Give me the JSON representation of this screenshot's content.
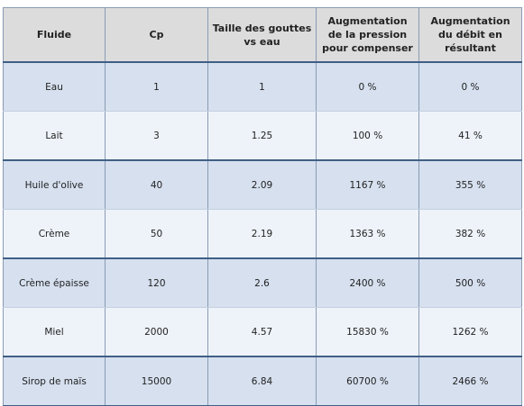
{
  "table": {
    "headers": [
      "Fluide",
      "Cp",
      "Taille des gouttes vs eau",
      "Augmentation de la pression pour compenser",
      "Augmentation du débit en résultant"
    ],
    "rows": [
      [
        "Eau",
        "1",
        "1",
        "0 %",
        "0 %"
      ],
      [
        "Lait",
        "3",
        "1.25",
        "100 %",
        "41 %"
      ],
      [
        "Huile d'olive",
        "40",
        "2.09",
        "1167 %",
        "355 %"
      ],
      [
        "Crème",
        "50",
        "2.19",
        "1363 %",
        "382 %"
      ],
      [
        "Crème épaisse",
        "120",
        "2.6",
        "2400 %",
        "500 %"
      ],
      [
        "Miel",
        "2000",
        "4.57",
        "15830 %",
        "1262 %"
      ],
      [
        "Sirop de maïs",
        "15000",
        "6.84",
        "60700 %",
        "2466 %"
      ]
    ]
  }
}
